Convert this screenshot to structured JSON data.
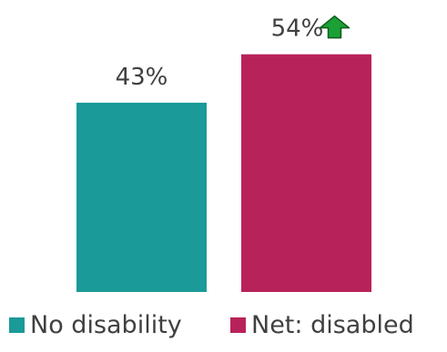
{
  "chart_data": {
    "type": "bar",
    "categories": [
      "No disability",
      "Net: disabled"
    ],
    "values": [
      43,
      54
    ],
    "data_labels": [
      "43%",
      "54%"
    ],
    "colors": [
      "#1a9a98",
      "#b8225a"
    ],
    "ylim": [
      0,
      56
    ],
    "legend": {
      "placement": "bottom",
      "entries": [
        "No disability",
        "Net: disabled"
      ]
    },
    "annotations": [
      {
        "category": "Net: disabled",
        "icon": "up-arrow-icon",
        "color": "#1aa034",
        "stroke": "#0d5c1a"
      }
    ]
  }
}
